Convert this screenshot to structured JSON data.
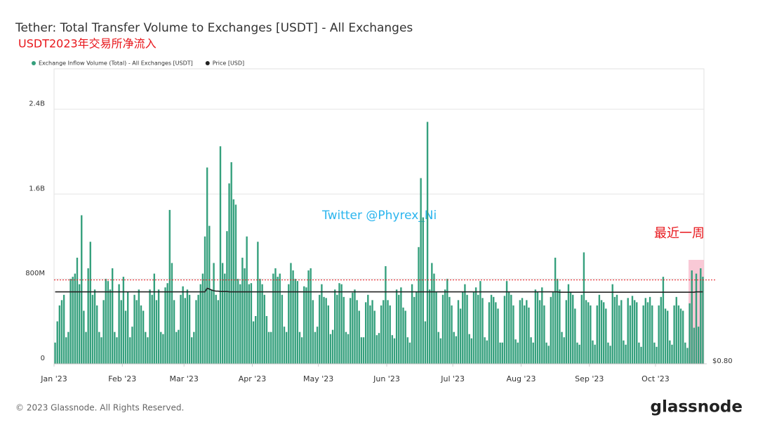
{
  "chart_data": {
    "type": "bar",
    "title": "Tether: Total Transfer Volume to Exchanges [USDT] - All Exchanges",
    "subtitle": "USDT2023年交易所净流入",
    "watermark": "Twitter @Phyrex_Ni",
    "annotation": "最近一周",
    "footer": "© 2023 Glassnode. All Rights Reserved.",
    "brand": "glassnode",
    "legend_position": "top-left",
    "grid": true,
    "reference_line": 790000000.0,
    "highlight": [
      288,
      294
    ],
    "xlim": [
      0,
      295
    ],
    "xticks": [
      {
        "value": 0,
        "label": "Jan '23"
      },
      {
        "value": 31,
        "label": "Feb '23"
      },
      {
        "value": 59,
        "label": "Mar '23"
      },
      {
        "value": 90,
        "label": "Apr '23"
      },
      {
        "value": 120,
        "label": "May '23"
      },
      {
        "value": 151,
        "label": "Jun '23"
      },
      {
        "value": 181,
        "label": "Jul '23"
      },
      {
        "value": 212,
        "label": "Aug '23"
      },
      {
        "value": 243,
        "label": "Sep '23"
      },
      {
        "value": 273,
        "label": "Oct '23"
      }
    ],
    "ylim": [
      0,
      2780000000.0
    ],
    "yticks": [
      0,
      {
        "value": 800000000.0,
        "label": "800M"
      },
      {
        "value": 1600000000.0,
        "label": "1.6B"
      },
      {
        "value": 2400000000.0,
        "label": "2.4B"
      }
    ],
    "y2lim": [
      0.8,
      1.62
    ],
    "y2ticks": [
      {
        "value": 0.8,
        "label": "$0.80"
      }
    ],
    "series": [
      {
        "name": "Exchange Inflow Volume (Total) - All Exchanges [USDT]",
        "color": "#35a07d",
        "values": [
          200000000.0,
          400000000.0,
          550000000.0,
          600000000.0,
          650000000.0,
          250000000.0,
          300000000.0,
          800000000.0,
          820000000.0,
          850000000.0,
          1000000000.0,
          750000000.0,
          1400000000.0,
          500000000.0,
          300000000.0,
          900000000.0,
          1150000000.0,
          650000000.0,
          700000000.0,
          550000000.0,
          300000000.0,
          250000000.0,
          600000000.0,
          800000000.0,
          780000000.0,
          700000000.0,
          900000000.0,
          300000000.0,
          250000000.0,
          750000000.0,
          600000000.0,
          820000000.0,
          500000000.0,
          680000000.0,
          250000000.0,
          350000000.0,
          650000000.0,
          600000000.0,
          700000000.0,
          550000000.0,
          500000000.0,
          300000000.0,
          250000000.0,
          700000000.0,
          650000000.0,
          850000000.0,
          600000000.0,
          700000000.0,
          300000000.0,
          280000000.0,
          720000000.0,
          760000000.0,
          1450000000.0,
          950000000.0,
          600000000.0,
          300000000.0,
          320000000.0,
          650000000.0,
          730000000.0,
          620000000.0,
          700000000.0,
          650000000.0,
          250000000.0,
          300000000.0,
          600000000.0,
          650000000.0,
          750000000.0,
          850000000.0,
          1200000000.0,
          1850000000.0,
          1300000000.0,
          700000000.0,
          950000000.0,
          650000000.0,
          600000000.0,
          2050000000.0,
          950000000.0,
          850000000.0,
          1250000000.0,
          1700000000.0,
          1900000000.0,
          1550000000.0,
          1500000000.0,
          800000000.0,
          750000000.0,
          1000000000.0,
          900000000.0,
          1200000000.0,
          750000000.0,
          760000000.0,
          400000000.0,
          450000000.0,
          1150000000.0,
          800000000.0,
          750000000.0,
          650000000.0,
          450000000.0,
          300000000.0,
          300000000.0,
          850000000.0,
          900000000.0,
          820000000.0,
          850000000.0,
          650000000.0,
          350000000.0,
          300000000.0,
          750000000.0,
          950000000.0,
          880000000.0,
          800000000.0,
          780000000.0,
          300000000.0,
          250000000.0,
          730000000.0,
          720000000.0,
          880000000.0,
          900000000.0,
          600000000.0,
          300000000.0,
          350000000.0,
          650000000.0,
          750000000.0,
          630000000.0,
          620000000.0,
          550000000.0,
          280000000.0,
          320000000.0,
          700000000.0,
          650000000.0,
          760000000.0,
          750000000.0,
          630000000.0,
          300000000.0,
          280000000.0,
          620000000.0,
          670000000.0,
          700000000.0,
          600000000.0,
          500000000.0,
          250000000.0,
          250000000.0,
          580000000.0,
          650000000.0,
          550000000.0,
          600000000.0,
          500000000.0,
          270000000.0,
          290000000.0,
          550000000.0,
          600000000.0,
          920000000.0,
          600000000.0,
          550000000.0,
          270000000.0,
          240000000.0,
          700000000.0,
          650000000.0,
          720000000.0,
          530000000.0,
          500000000.0,
          250000000.0,
          200000000.0,
          750000000.0,
          630000000.0,
          680000000.0,
          1100000000.0,
          1750000000.0,
          1380000000.0,
          400000000.0,
          2280000000.0,
          700000000.0,
          950000000.0,
          850000000.0,
          680000000.0,
          300000000.0,
          240000000.0,
          650000000.0,
          700000000.0,
          800000000.0,
          630000000.0,
          550000000.0,
          300000000.0,
          260000000.0,
          600000000.0,
          520000000.0,
          680000000.0,
          750000000.0,
          650000000.0,
          280000000.0,
          240000000.0,
          680000000.0,
          720000000.0,
          650000000.0,
          780000000.0,
          620000000.0,
          250000000.0,
          220000000.0,
          580000000.0,
          650000000.0,
          630000000.0,
          580000000.0,
          520000000.0,
          200000000.0,
          200000000.0,
          640000000.0,
          780000000.0,
          680000000.0,
          650000000.0,
          550000000.0,
          230000000.0,
          200000000.0,
          600000000.0,
          620000000.0,
          550000000.0,
          600000000.0,
          530000000.0,
          250000000.0,
          200000000.0,
          700000000.0,
          680000000.0,
          600000000.0,
          720000000.0,
          550000000.0,
          200000000.0,
          170000000.0,
          630000000.0,
          680000000.0,
          1000000000.0,
          800000000.0,
          700000000.0,
          300000000.0,
          250000000.0,
          600000000.0,
          750000000.0,
          680000000.0,
          650000000.0,
          520000000.0,
          200000000.0,
          180000000.0,
          650000000.0,
          1050000000.0,
          600000000.0,
          580000000.0,
          550000000.0,
          220000000.0,
          180000000.0,
          550000000.0,
          650000000.0,
          600000000.0,
          580000000.0,
          520000000.0,
          200000000.0,
          170000000.0,
          750000000.0,
          630000000.0,
          650000000.0,
          550000000.0,
          600000000.0,
          220000000.0,
          180000000.0,
          620000000.0,
          550000000.0,
          640000000.0,
          600000000.0,
          580000000.0,
          200000000.0,
          160000000.0,
          550000000.0,
          620000000.0,
          580000000.0,
          630000000.0,
          550000000.0,
          200000000.0,
          160000000.0,
          550000000.0,
          630000000.0,
          820000000.0,
          520000000.0,
          500000000.0,
          220000000.0,
          180000000.0,
          550000000.0,
          630000000.0,
          550000000.0,
          520000000.0,
          500000000.0,
          200000000.0,
          150000000.0,
          570000000.0,
          880000000.0,
          340000000.0,
          850000000.0,
          350000000.0,
          900000000.0,
          820000000.0
        ]
      },
      {
        "name": "Price [USD]",
        "color": "#222222",
        "axis": "y2",
        "values": [
          1,
          1,
          1,
          1,
          1,
          1,
          1,
          1,
          1,
          1,
          1,
          1,
          1,
          1,
          1,
          1,
          1,
          1,
          1,
          1,
          1,
          1,
          1,
          1,
          1,
          1,
          1,
          1,
          1,
          1,
          1,
          1,
          1,
          1,
          1,
          1,
          1,
          1,
          1,
          1,
          1,
          1,
          1,
          1,
          1,
          1,
          1,
          1,
          1,
          1,
          1,
          1,
          1,
          1,
          1,
          1,
          1,
          1,
          1,
          1,
          1,
          1,
          1,
          1,
          1,
          1,
          1,
          1,
          1,
          1.01,
          1.008,
          1.005,
          1.003,
          1.002,
          1.002,
          1.001,
          1.001,
          1.001,
          1.001,
          1,
          1,
          1,
          1,
          1,
          1,
          1,
          1,
          1,
          1,
          1,
          1,
          1,
          1,
          1,
          1,
          1,
          1,
          1,
          1,
          1,
          1,
          1,
          1,
          1,
          1,
          1,
          1,
          1,
          1,
          1,
          1,
          1,
          1,
          1,
          1,
          1,
          1,
          1,
          1,
          1,
          1,
          1,
          1,
          1,
          1,
          1,
          1,
          1,
          1,
          1,
          1,
          1,
          1,
          1,
          1,
          1,
          1,
          1,
          1,
          1,
          1,
          1,
          1,
          1,
          1,
          1,
          1,
          1,
          1,
          1,
          1,
          1,
          1,
          1,
          1,
          1,
          1,
          1,
          1,
          1,
          1,
          1,
          1,
          1,
          1,
          1,
          1,
          1,
          1,
          1,
          1,
          1,
          1,
          1,
          1,
          1,
          1,
          1,
          1,
          1,
          1,
          1,
          1,
          1,
          1,
          1,
          1,
          1,
          1,
          1,
          1,
          1,
          1,
          1,
          1,
          1,
          1,
          1,
          1,
          1,
          1,
          1,
          1,
          1,
          1,
          1,
          1,
          1,
          1,
          1,
          1,
          1,
          1,
          1,
          1,
          1,
          1,
          1,
          1,
          1,
          1,
          1,
          1,
          1,
          1,
          1,
          1,
          1,
          1,
          0.999,
          0.999,
          0.999,
          0.999,
          0.999,
          0.999,
          0.999,
          0.999,
          0.999,
          0.999,
          0.999,
          0.999,
          0.999,
          0.999,
          0.999,
          0.999,
          0.999,
          0.999,
          0.999,
          0.999,
          0.999,
          0.999,
          0.999,
          0.999,
          0.999,
          0.999,
          0.999,
          0.999,
          0.999,
          0.999,
          0.999,
          0.999,
          0.999,
          0.999,
          0.999,
          0.999,
          0.999,
          0.999,
          0.999,
          0.999,
          0.999,
          0.999,
          0.999,
          0.999,
          0.999,
          0.999,
          0.999,
          0.999,
          0.999,
          0.999,
          0.999,
          0.999,
          0.999,
          0.999,
          0.999,
          0.999,
          0.999,
          0.999,
          0.999,
          0.999,
          0.999,
          0.999,
          1,
          1,
          1,
          1
        ]
      }
    ]
  }
}
